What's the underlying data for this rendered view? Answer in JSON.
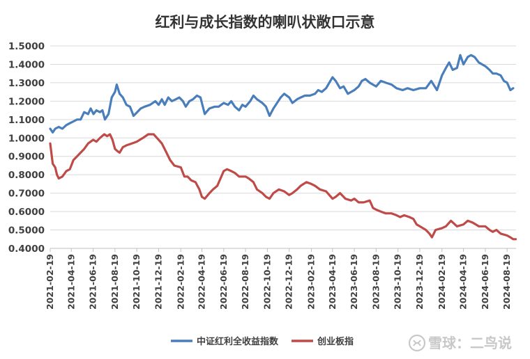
{
  "chart_data": {
    "type": "line",
    "title": "红利与成长指数的喇叭状敞口示意",
    "xlabel": "",
    "ylabel": "",
    "ylim": [
      0.4,
      1.5
    ],
    "yticks": [
      "0.4000",
      "0.5000",
      "0.6000",
      "0.7000",
      "0.8000",
      "0.9000",
      "1.0000",
      "1.1000",
      "1.2000",
      "1.3000",
      "1.4000",
      "1.5000"
    ],
    "x_tick_labels": [
      "2021-02-19",
      "2021-04-19",
      "2021-06-19",
      "2021-08-19",
      "2021-10-19",
      "2021-12-19",
      "2022-02-19",
      "2022-04-19",
      "2022-06-19",
      "2022-08-19",
      "2022-10-19",
      "2022-12-19",
      "2023-02-19",
      "2023-04-19",
      "2023-06-19",
      "2023-08-19",
      "2023-10-19",
      "2023-12-19",
      "2024-02-19",
      "2024-04-19",
      "2024-06-19",
      "2024-08-19"
    ],
    "grid": true,
    "legend_position": "bottom",
    "series": [
      {
        "name": "中证红利全收益指数",
        "color": "#4a7ebb",
        "points": [
          [
            "2021-02-19",
            1.05
          ],
          [
            "2021-02-26",
            1.03
          ],
          [
            "2021-03-05",
            1.05
          ],
          [
            "2021-03-15",
            1.06
          ],
          [
            "2021-03-25",
            1.05
          ],
          [
            "2021-04-05",
            1.07
          ],
          [
            "2021-04-15",
            1.08
          ],
          [
            "2021-04-25",
            1.09
          ],
          [
            "2021-05-05",
            1.1
          ],
          [
            "2021-05-15",
            1.1
          ],
          [
            "2021-05-25",
            1.14
          ],
          [
            "2021-06-05",
            1.13
          ],
          [
            "2021-06-12",
            1.16
          ],
          [
            "2021-06-20",
            1.13
          ],
          [
            "2021-06-28",
            1.15
          ],
          [
            "2021-07-08",
            1.14
          ],
          [
            "2021-07-15",
            1.15
          ],
          [
            "2021-07-22",
            1.1
          ],
          [
            "2021-08-01",
            1.13
          ],
          [
            "2021-08-10",
            1.22
          ],
          [
            "2021-08-19",
            1.25
          ],
          [
            "2021-08-24",
            1.29
          ],
          [
            "2021-09-01",
            1.24
          ],
          [
            "2021-09-10",
            1.22
          ],
          [
            "2021-09-20",
            1.18
          ],
          [
            "2021-09-30",
            1.17
          ],
          [
            "2021-10-10",
            1.12
          ],
          [
            "2021-10-20",
            1.14
          ],
          [
            "2021-10-30",
            1.16
          ],
          [
            "2021-11-10",
            1.17
          ],
          [
            "2021-11-25",
            1.18
          ],
          [
            "2021-12-10",
            1.2
          ],
          [
            "2021-12-19",
            1.18
          ],
          [
            "2021-12-28",
            1.21
          ],
          [
            "2022-01-05",
            1.18
          ],
          [
            "2022-01-15",
            1.22
          ],
          [
            "2022-01-25",
            1.2
          ],
          [
            "2022-02-05",
            1.21
          ],
          [
            "2022-02-15",
            1.22
          ],
          [
            "2022-02-25",
            1.2
          ],
          [
            "2022-03-05",
            1.17
          ],
          [
            "2022-03-15",
            1.2
          ],
          [
            "2022-03-25",
            1.21
          ],
          [
            "2022-04-05",
            1.23
          ],
          [
            "2022-04-15",
            1.22
          ],
          [
            "2022-04-27",
            1.13
          ],
          [
            "2022-05-10",
            1.16
          ],
          [
            "2022-05-25",
            1.17
          ],
          [
            "2022-06-05",
            1.17
          ],
          [
            "2022-06-19",
            1.19
          ],
          [
            "2022-07-01",
            1.18
          ],
          [
            "2022-07-10",
            1.2
          ],
          [
            "2022-07-20",
            1.17
          ],
          [
            "2022-08-01",
            1.15
          ],
          [
            "2022-08-10",
            1.18
          ],
          [
            "2022-08-19",
            1.17
          ],
          [
            "2022-09-01",
            1.2
          ],
          [
            "2022-09-10",
            1.23
          ],
          [
            "2022-09-20",
            1.21
          ],
          [
            "2022-10-05",
            1.19
          ],
          [
            "2022-10-15",
            1.17
          ],
          [
            "2022-10-25",
            1.12
          ],
          [
            "2022-11-05",
            1.16
          ],
          [
            "2022-11-15",
            1.19
          ],
          [
            "2022-11-25",
            1.22
          ],
          [
            "2022-12-05",
            1.24
          ],
          [
            "2022-12-19",
            1.22
          ],
          [
            "2022-12-28",
            1.19
          ],
          [
            "2023-01-10",
            1.21
          ],
          [
            "2023-01-20",
            1.22
          ],
          [
            "2023-02-01",
            1.23
          ],
          [
            "2023-02-15",
            1.23
          ],
          [
            "2023-03-01",
            1.24
          ],
          [
            "2023-03-10",
            1.26
          ],
          [
            "2023-03-20",
            1.25
          ],
          [
            "2023-04-01",
            1.27
          ],
          [
            "2023-04-10",
            1.3
          ],
          [
            "2023-04-19",
            1.33
          ],
          [
            "2023-04-28",
            1.31
          ],
          [
            "2023-05-10",
            1.27
          ],
          [
            "2023-05-20",
            1.28
          ],
          [
            "2023-06-01",
            1.24
          ],
          [
            "2023-06-19",
            1.26
          ],
          [
            "2023-07-01",
            1.28
          ],
          [
            "2023-07-10",
            1.31
          ],
          [
            "2023-07-20",
            1.32
          ],
          [
            "2023-08-01",
            1.3
          ],
          [
            "2023-08-10",
            1.29
          ],
          [
            "2023-08-19",
            1.28
          ],
          [
            "2023-09-01",
            1.31
          ],
          [
            "2023-09-15",
            1.3
          ],
          [
            "2023-10-01",
            1.29
          ],
          [
            "2023-10-15",
            1.27
          ],
          [
            "2023-11-01",
            1.26
          ],
          [
            "2023-11-15",
            1.27
          ],
          [
            "2023-12-01",
            1.26
          ],
          [
            "2023-12-19",
            1.27
          ],
          [
            "2024-01-05",
            1.27
          ],
          [
            "2024-01-20",
            1.31
          ],
          [
            "2024-02-05",
            1.26
          ],
          [
            "2024-02-19",
            1.34
          ],
          [
            "2024-03-01",
            1.38
          ],
          [
            "2024-03-10",
            1.41
          ],
          [
            "2024-03-20",
            1.37
          ],
          [
            "2024-04-01",
            1.38
          ],
          [
            "2024-04-10",
            1.45
          ],
          [
            "2024-04-19",
            1.4
          ],
          [
            "2024-05-01",
            1.44
          ],
          [
            "2024-05-10",
            1.45
          ],
          [
            "2024-05-20",
            1.44
          ],
          [
            "2024-06-01",
            1.41
          ],
          [
            "2024-06-19",
            1.39
          ],
          [
            "2024-07-01",
            1.37
          ],
          [
            "2024-07-10",
            1.35
          ],
          [
            "2024-07-20",
            1.35
          ],
          [
            "2024-08-01",
            1.34
          ],
          [
            "2024-08-10",
            1.31
          ],
          [
            "2024-08-19",
            1.3
          ],
          [
            "2024-08-28",
            1.26
          ],
          [
            "2024-09-05",
            1.27
          ]
        ]
      },
      {
        "name": "创业板指",
        "color": "#be4b48",
        "points": [
          [
            "2021-02-19",
            0.97
          ],
          [
            "2021-02-26",
            0.86
          ],
          [
            "2021-03-05",
            0.84
          ],
          [
            "2021-03-10",
            0.8
          ],
          [
            "2021-03-15",
            0.78
          ],
          [
            "2021-03-25",
            0.79
          ],
          [
            "2021-04-05",
            0.82
          ],
          [
            "2021-04-15",
            0.83
          ],
          [
            "2021-04-25",
            0.88
          ],
          [
            "2021-05-05",
            0.9
          ],
          [
            "2021-05-15",
            0.92
          ],
          [
            "2021-05-25",
            0.94
          ],
          [
            "2021-06-05",
            0.97
          ],
          [
            "2021-06-19",
            0.99
          ],
          [
            "2021-06-28",
            0.98
          ],
          [
            "2021-07-08",
            1.0
          ],
          [
            "2021-07-20",
            1.02
          ],
          [
            "2021-07-28",
            1.01
          ],
          [
            "2021-08-05",
            1.02
          ],
          [
            "2021-08-12",
            0.99
          ],
          [
            "2021-08-19",
            0.94
          ],
          [
            "2021-08-25",
            0.93
          ],
          [
            "2021-09-01",
            0.92
          ],
          [
            "2021-09-10",
            0.95
          ],
          [
            "2021-09-20",
            0.96
          ],
          [
            "2021-10-05",
            0.97
          ],
          [
            "2021-10-19",
            0.98
          ],
          [
            "2021-11-05",
            1.0
          ],
          [
            "2021-11-20",
            1.02
          ],
          [
            "2021-12-05",
            1.02
          ],
          [
            "2021-12-19",
            0.99
          ],
          [
            "2021-12-28",
            0.97
          ],
          [
            "2022-01-10",
            0.92
          ],
          [
            "2022-01-20",
            0.88
          ],
          [
            "2022-02-01",
            0.85
          ],
          [
            "2022-02-19",
            0.84
          ],
          [
            "2022-03-01",
            0.79
          ],
          [
            "2022-03-10",
            0.79
          ],
          [
            "2022-03-20",
            0.77
          ],
          [
            "2022-04-01",
            0.76
          ],
          [
            "2022-04-12",
            0.72
          ],
          [
            "2022-04-19",
            0.68
          ],
          [
            "2022-04-27",
            0.67
          ],
          [
            "2022-05-10",
            0.7
          ],
          [
            "2022-05-20",
            0.72
          ],
          [
            "2022-06-01",
            0.74
          ],
          [
            "2022-06-10",
            0.78
          ],
          [
            "2022-06-19",
            0.82
          ],
          [
            "2022-06-28",
            0.83
          ],
          [
            "2022-07-10",
            0.82
          ],
          [
            "2022-07-20",
            0.81
          ],
          [
            "2022-08-01",
            0.79
          ],
          [
            "2022-08-19",
            0.79
          ],
          [
            "2022-08-28",
            0.78
          ],
          [
            "2022-09-10",
            0.76
          ],
          [
            "2022-09-20",
            0.72
          ],
          [
            "2022-10-05",
            0.7
          ],
          [
            "2022-10-15",
            0.68
          ],
          [
            "2022-10-25",
            0.67
          ],
          [
            "2022-11-05",
            0.7
          ],
          [
            "2022-11-20",
            0.72
          ],
          [
            "2022-12-05",
            0.71
          ],
          [
            "2022-12-19",
            0.69
          ],
          [
            "2022-12-28",
            0.7
          ],
          [
            "2023-01-10",
            0.72
          ],
          [
            "2023-01-20",
            0.74
          ],
          [
            "2023-02-05",
            0.76
          ],
          [
            "2023-02-19",
            0.75
          ],
          [
            "2023-03-01",
            0.74
          ],
          [
            "2023-03-15",
            0.72
          ],
          [
            "2023-04-01",
            0.71
          ],
          [
            "2023-04-10",
            0.69
          ],
          [
            "2023-04-19",
            0.67
          ],
          [
            "2023-04-28",
            0.68
          ],
          [
            "2023-05-10",
            0.7
          ],
          [
            "2023-05-25",
            0.67
          ],
          [
            "2023-06-10",
            0.66
          ],
          [
            "2023-06-19",
            0.67
          ],
          [
            "2023-07-01",
            0.65
          ],
          [
            "2023-07-15",
            0.65
          ],
          [
            "2023-08-01",
            0.66
          ],
          [
            "2023-08-10",
            0.62
          ],
          [
            "2023-08-19",
            0.61
          ],
          [
            "2023-09-01",
            0.6
          ],
          [
            "2023-09-15",
            0.59
          ],
          [
            "2023-10-01",
            0.59
          ],
          [
            "2023-10-15",
            0.58
          ],
          [
            "2023-10-25",
            0.57
          ],
          [
            "2023-11-05",
            0.58
          ],
          [
            "2023-11-20",
            0.57
          ],
          [
            "2023-12-01",
            0.56
          ],
          [
            "2023-12-10",
            0.53
          ],
          [
            "2023-12-19",
            0.52
          ],
          [
            "2024-01-05",
            0.5
          ],
          [
            "2024-01-15",
            0.48
          ],
          [
            "2024-01-22",
            0.46
          ],
          [
            "2024-02-01",
            0.5
          ],
          [
            "2024-02-19",
            0.51
          ],
          [
            "2024-03-01",
            0.52
          ],
          [
            "2024-03-15",
            0.55
          ],
          [
            "2024-04-01",
            0.52
          ],
          [
            "2024-04-19",
            0.53
          ],
          [
            "2024-05-01",
            0.55
          ],
          [
            "2024-05-15",
            0.54
          ],
          [
            "2024-06-01",
            0.52
          ],
          [
            "2024-06-19",
            0.52
          ],
          [
            "2024-07-01",
            0.5
          ],
          [
            "2024-07-10",
            0.49
          ],
          [
            "2024-07-20",
            0.5
          ],
          [
            "2024-08-01",
            0.48
          ],
          [
            "2024-08-19",
            0.47
          ],
          [
            "2024-08-28",
            0.46
          ],
          [
            "2024-09-05",
            0.45
          ],
          [
            "2024-09-12",
            0.45
          ]
        ]
      }
    ]
  },
  "watermark": {
    "text": "雪球：二鸟说",
    "icon": "xueqiu-logo-icon"
  }
}
